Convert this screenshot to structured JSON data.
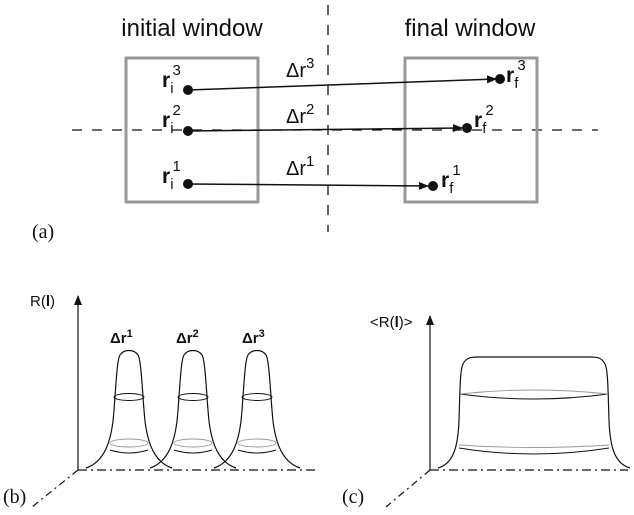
{
  "panel_a": {
    "initial_title": "initial window",
    "final_title": "final window",
    "label": "(a)",
    "rows": [
      {
        "start_base": "r",
        "start_sub": "i",
        "start_sup": "3",
        "delta_base": "Δr",
        "delta_sup": "3",
        "end_base": "r",
        "end_sub": "f",
        "end_sup": "3"
      },
      {
        "start_base": "r",
        "start_sub": "i",
        "start_sup": "2",
        "delta_base": "Δr",
        "delta_sup": "2",
        "end_base": "r",
        "end_sub": "f",
        "end_sup": "2"
      },
      {
        "start_base": "r",
        "start_sub": "i",
        "start_sup": "1",
        "delta_base": "Δr",
        "delta_sup": "1",
        "end_base": "r",
        "end_sub": "f",
        "end_sup": "1"
      }
    ],
    "colors": {
      "window_border": "#999999",
      "line": "#111111"
    }
  },
  "panel_b": {
    "label": "(b)",
    "axis_title_prefix": "R(",
    "axis_title_bold": "l",
    "axis_title_suffix": ")",
    "peaks": [
      {
        "base": "Δr",
        "sup": "1"
      },
      {
        "base": "Δr",
        "sup": "2"
      },
      {
        "base": "Δr",
        "sup": "3"
      }
    ]
  },
  "panel_c": {
    "label": "(c)",
    "axis_title_prefix": "<R(",
    "axis_title_bold": "l",
    "axis_title_suffix": ")>"
  }
}
